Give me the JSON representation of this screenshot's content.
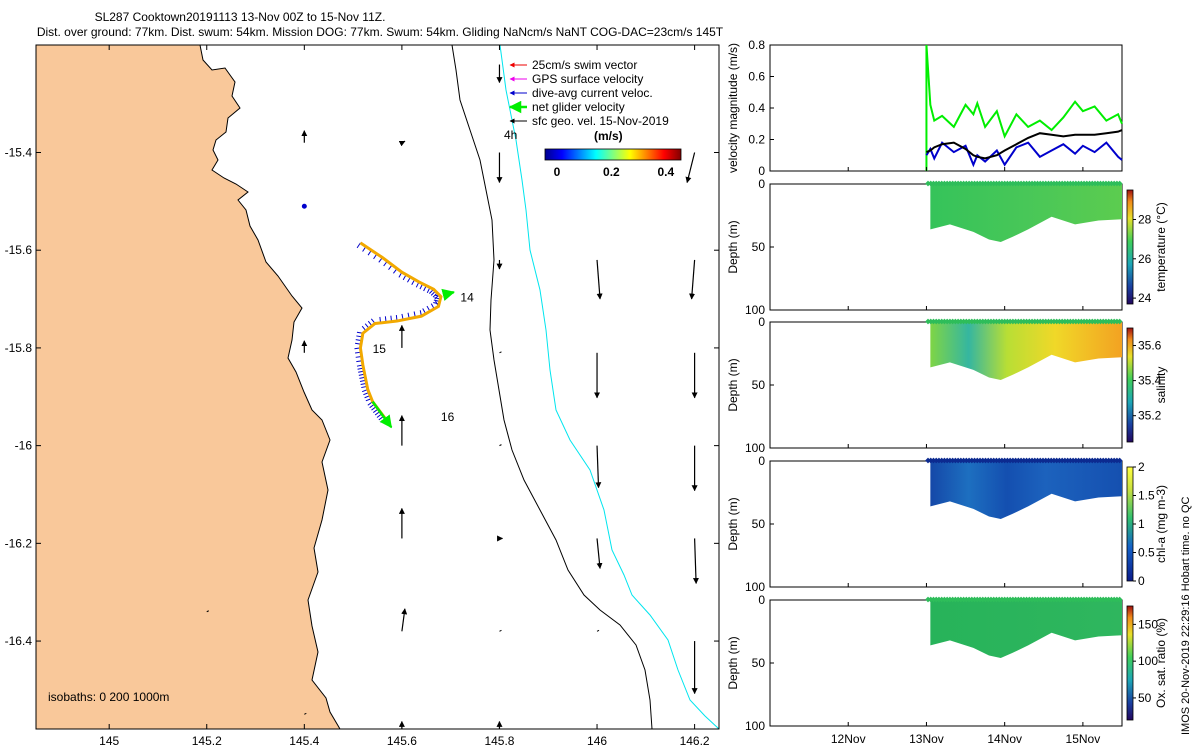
{
  "header": {
    "line1": "SL287 Cooktown20191113 13-Nov 00Z to 15-Nov 11Z.",
    "line2": "Dist. over ground: 77km. Dist. swum: 54km. Mission DOG: 77km. Swum: 54km. Gliding NaNcm/s NaNT COG-DAC=23cm/s 145T"
  },
  "credit": "IMOS 20-Nov-2019 22:29:16 Hobart time. no QC",
  "colors": {
    "land": "#f9c89a",
    "track": "#f2a900",
    "dac": "#0000cc",
    "net": "#00ee00",
    "swim": "#ee0000",
    "gps": "#ee00ee",
    "isobath200": "#000000",
    "isobath1000": "#00e5ee"
  },
  "chart_data": [
    {
      "type": "map",
      "title": "Glider track with current vectors",
      "x_ticks": [
        "145",
        "145.2",
        "145.4",
        "145.6",
        "145.8",
        "146",
        "146.2"
      ],
      "y_ticks": [
        "-15.4",
        "-15.6",
        "-15.8",
        "-16",
        "-16.2",
        "-16.4"
      ],
      "xlim": [
        144.85,
        146.25
      ],
      "ylim": [
        -16.58,
        -15.18
      ],
      "legend": [
        {
          "label": "25cm/s swim vector",
          "color": "#ee0000"
        },
        {
          "label": "GPS surface velocity",
          "color": "#ee00ee"
        },
        {
          "label": "dive-avg current veloc.",
          "color": "#0000cc"
        },
        {
          "label": "net glider velocity",
          "color": "#00ee00"
        },
        {
          "label": "sfc geo. vel. 15-Nov-2019",
          "color": "#000000"
        }
      ],
      "legend_extra": "4h",
      "colorbar": {
        "label": "(m/s)",
        "ticks": [
          "0",
          "0.2",
          "0.4"
        ],
        "range": [
          0,
          0.5
        ]
      },
      "isobaths_label": "isobaths: 0   200  1000m",
      "day_labels": [
        {
          "text": "14",
          "lon": 145.72,
          "lat": -15.705
        },
        {
          "text": "15",
          "lon": 145.54,
          "lat": -15.81
        },
        {
          "text": "16",
          "lon": 145.68,
          "lat": -15.95
        }
      ],
      "track": [
        [
          145.515,
          -15.585
        ],
        [
          145.56,
          -15.615
        ],
        [
          145.6,
          -15.645
        ],
        [
          145.635,
          -15.665
        ],
        [
          145.665,
          -15.68
        ],
        [
          145.68,
          -15.695
        ],
        [
          145.675,
          -15.715
        ],
        [
          145.64,
          -15.735
        ],
        [
          145.59,
          -15.745
        ],
        [
          145.545,
          -15.75
        ],
        [
          145.52,
          -15.77
        ],
        [
          145.515,
          -15.8
        ],
        [
          145.52,
          -15.835
        ],
        [
          145.525,
          -15.86
        ],
        [
          145.53,
          -15.885
        ],
        [
          145.54,
          -15.91
        ],
        [
          145.555,
          -15.93
        ],
        [
          145.57,
          -15.95
        ]
      ],
      "geo_vectors": [
        {
          "lon": 145.4,
          "lat": -15.38,
          "u": 0.0,
          "v": 0.08
        },
        {
          "lon": 145.6,
          "lat": -15.38,
          "u": 0.02,
          "v": 0.01
        },
        {
          "lon": 145.8,
          "lat": -15.4,
          "u": 0.0,
          "v": -0.2
        },
        {
          "lon": 146.2,
          "lat": -15.4,
          "u": -0.05,
          "v": -0.2
        },
        {
          "lon": 145.8,
          "lat": -15.22,
          "u": 0.0,
          "v": -0.12
        },
        {
          "lon": 145.4,
          "lat": -15.51,
          "u": 0.0,
          "v": 0.0
        },
        {
          "lon": 145.8,
          "lat": -15.62,
          "u": 0.0,
          "v": -0.06
        },
        {
          "lon": 146.0,
          "lat": -15.62,
          "u": 0.02,
          "v": -0.26
        },
        {
          "lon": 146.2,
          "lat": -15.62,
          "u": -0.02,
          "v": -0.26
        },
        {
          "lon": 145.4,
          "lat": -15.81,
          "u": 0.0,
          "v": 0.08
        },
        {
          "lon": 145.6,
          "lat": -15.8,
          "u": 0.0,
          "v": 0.15
        },
        {
          "lon": 145.8,
          "lat": -15.81,
          "u": 0.0,
          "v": 0.0
        },
        {
          "lon": 146.0,
          "lat": -15.81,
          "u": 0.0,
          "v": -0.3
        },
        {
          "lon": 146.2,
          "lat": -15.81,
          "u": 0.0,
          "v": -0.3
        },
        {
          "lon": 145.6,
          "lat": -16.0,
          "u": 0.0,
          "v": 0.2
        },
        {
          "lon": 145.8,
          "lat": -16.0,
          "u": 0.0,
          "v": 0.0
        },
        {
          "lon": 146.0,
          "lat": -16.0,
          "u": 0.01,
          "v": -0.28
        },
        {
          "lon": 146.2,
          "lat": -16.0,
          "u": 0.0,
          "v": -0.3
        },
        {
          "lon": 145.6,
          "lat": -16.19,
          "u": 0.0,
          "v": 0.2
        },
        {
          "lon": 145.8,
          "lat": -16.19,
          "u": 0.02,
          "v": 0.0
        },
        {
          "lon": 146.0,
          "lat": -16.19,
          "u": 0.02,
          "v": -0.2
        },
        {
          "lon": 146.2,
          "lat": -16.19,
          "u": 0.01,
          "v": -0.3
        },
        {
          "lon": 145.6,
          "lat": -16.38,
          "u": 0.02,
          "v": 0.15
        },
        {
          "lon": 145.8,
          "lat": -16.38,
          "u": 0.0,
          "v": 0.0
        },
        {
          "lon": 146.0,
          "lat": -16.38,
          "u": 0.0,
          "v": 0.0
        },
        {
          "lon": 146.2,
          "lat": -16.4,
          "u": 0.0,
          "v": -0.35
        },
        {
          "lon": 145.2,
          "lat": -16.34,
          "u": 0.0,
          "v": 0.0
        },
        {
          "lon": 145.4,
          "lat": -16.55,
          "u": 0.0,
          "v": 0.0
        },
        {
          "lon": 145.6,
          "lat": -16.58,
          "u": 0.0,
          "v": 0.05
        },
        {
          "lon": 145.8,
          "lat": -16.58,
          "u": 0.0,
          "v": 0.05
        }
      ]
    },
    {
      "type": "line",
      "ylabel": "velocity magnitude (m/s)",
      "ylim": [
        0,
        0.8
      ],
      "y_ticks": [
        "0",
        "0.2",
        "0.4",
        "0.6",
        "0.8"
      ],
      "x": [
        13.0,
        13.05,
        13.1,
        13.2,
        13.35,
        13.5,
        13.6,
        13.65,
        13.75,
        13.9,
        14.0,
        14.15,
        14.3,
        14.45,
        14.6,
        14.75,
        14.9,
        15.0,
        15.15,
        15.3,
        15.45,
        15.5
      ],
      "series": [
        {
          "name": "net glider velocity",
          "color": "#00ee00",
          "values": [
            0.8,
            0.42,
            0.32,
            0.35,
            0.28,
            0.42,
            0.36,
            0.43,
            0.28,
            0.38,
            0.22,
            0.36,
            0.28,
            0.32,
            0.26,
            0.34,
            0.44,
            0.38,
            0.41,
            0.32,
            0.36,
            0.3
          ]
        },
        {
          "name": "dive-avg current",
          "color": "#0000cc",
          "values": [
            0.1,
            0.14,
            0.08,
            0.18,
            0.12,
            0.16,
            0.04,
            0.1,
            0.06,
            0.13,
            0.04,
            0.15,
            0.18,
            0.09,
            0.13,
            0.17,
            0.11,
            0.16,
            0.12,
            0.18,
            0.09,
            0.07
          ]
        },
        {
          "name": "sfc geo. vel.",
          "color": "#000000",
          "values": [
            0.12,
            0.13,
            0.15,
            0.17,
            0.18,
            0.14,
            0.1,
            0.09,
            0.08,
            0.1,
            0.13,
            0.17,
            0.21,
            0.24,
            0.23,
            0.22,
            0.23,
            0.23,
            0.23,
            0.24,
            0.25,
            0.26
          ]
        }
      ]
    },
    {
      "type": "heatmap",
      "sections": [
        {
          "key": "temperature",
          "colorbar_label": "temperature (°C)",
          "vmin": 23.7,
          "vmax": 29.5,
          "ticks": [
            "24",
            "26",
            "28"
          ],
          "field": "temp"
        },
        {
          "key": "salinity",
          "colorbar_label": "salinity",
          "vmin": 35.05,
          "vmax": 35.7,
          "ticks": [
            "35.2",
            "35.4",
            "35.6"
          ],
          "field": "sal"
        },
        {
          "key": "chla",
          "colorbar_label": "chl-a (mg m-3)",
          "vmin": 0,
          "vmax": 2,
          "ticks": [
            "0",
            "0.5",
            "1",
            "1.5",
            "2"
          ],
          "field": "chl"
        },
        {
          "key": "oxygen",
          "colorbar_label": "Ox. sat. ratio (%)",
          "vmin": 20,
          "vmax": 175,
          "ticks": [
            "50",
            "100",
            "150"
          ],
          "field": "ox"
        }
      ],
      "ylabel": "Depth (m)",
      "y_ticks": [
        "0",
        "50",
        "100"
      ],
      "ylim": [
        0,
        100
      ],
      "xlim": [
        11.0,
        15.5
      ],
      "x_ticks": [
        "12Nov",
        "13Nov",
        "14Nov",
        "15Nov"
      ],
      "bottom_depth": {
        "x": [
          13.05,
          13.3,
          13.6,
          13.8,
          13.95,
          14.1,
          14.3,
          14.6,
          14.9,
          15.2,
          15.5
        ],
        "depth": [
          36,
          32,
          38,
          44,
          46,
          42,
          36,
          26,
          32,
          29,
          28
        ]
      }
    }
  ]
}
